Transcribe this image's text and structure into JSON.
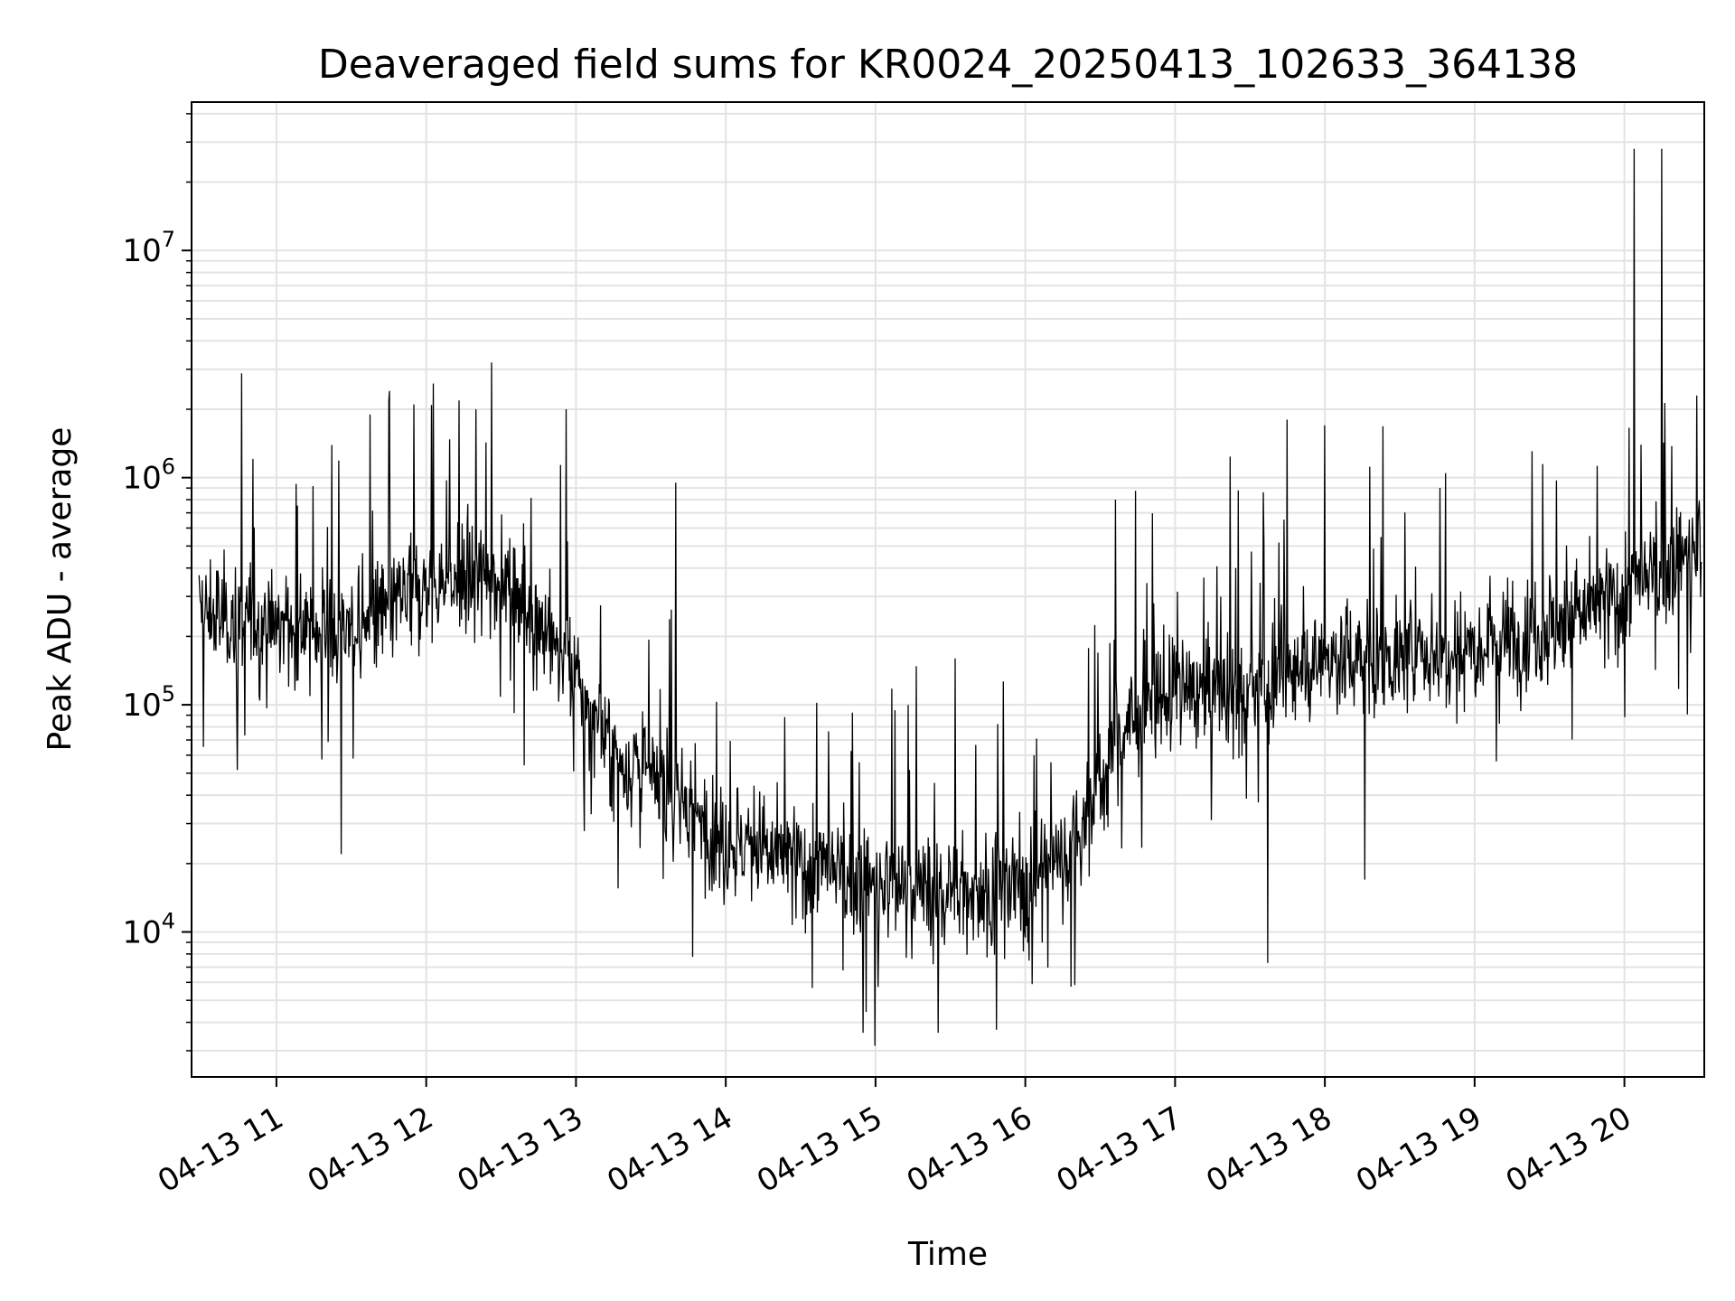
{
  "chart_data": {
    "type": "line",
    "title": "Deaveraged field sums for KR0024_20250413_102633_364138",
    "xlabel": "Time",
    "ylabel": "Peak ADU - average",
    "yscale": "log",
    "ylim": [
      2300,
      45000000
    ],
    "xlim": [
      "2025-04-13 10:26",
      "2025-04-13 20:32"
    ],
    "x_ticks": [
      {
        "value": "2025-04-13 11:00",
        "label": "04-13 11"
      },
      {
        "value": "2025-04-13 12:00",
        "label": "04-13 12"
      },
      {
        "value": "2025-04-13 13:00",
        "label": "04-13 13"
      },
      {
        "value": "2025-04-13 14:00",
        "label": "04-13 14"
      },
      {
        "value": "2025-04-13 15:00",
        "label": "04-13 15"
      },
      {
        "value": "2025-04-13 16:00",
        "label": "04-13 16"
      },
      {
        "value": "2025-04-13 17:00",
        "label": "04-13 17"
      },
      {
        "value": "2025-04-13 18:00",
        "label": "04-13 18"
      },
      {
        "value": "2025-04-13 19:00",
        "label": "04-13 19"
      },
      {
        "value": "2025-04-13 20:00",
        "label": "04-13 20"
      }
    ],
    "y_ticks": [
      {
        "value": 10000,
        "base": "10",
        "exp": "4"
      },
      {
        "value": 100000,
        "base": "10",
        "exp": "5"
      },
      {
        "value": 1000000,
        "base": "10",
        "exp": "6"
      },
      {
        "value": 10000000,
        "base": "10",
        "exp": "7"
      }
    ],
    "grid": true,
    "line_color": "#000000",
    "grid_color": "#e3e3e3",
    "series": [
      {
        "x": [
          "2025-04-13 10:30",
          "2025-04-13 11:00",
          "2025-04-13 11:30",
          "2025-04-13 12:00",
          "2025-04-13 12:30",
          "2025-04-13 12:50",
          "2025-04-13 13:15",
          "2025-04-13 13:40",
          "2025-04-13 14:00",
          "2025-04-13 14:30",
          "2025-04-13 15:00",
          "2025-04-13 15:30",
          "2025-04-13 16:00",
          "2025-04-13 16:20",
          "2025-04-13 16:40",
          "2025-04-13 17:00",
          "2025-04-13 17:30",
          "2025-04-13 18:00",
          "2025-04-13 18:30",
          "2025-04-13 19:00",
          "2025-04-13 19:30",
          "2025-04-13 20:00",
          "2025-04-13 20:30"
        ],
        "y": [
          250000,
          220000,
          210000,
          330000,
          380000,
          200000,
          60000,
          40000,
          25000,
          20000,
          16000,
          15000,
          16000,
          25000,
          80000,
          120000,
          110000,
          160000,
          160000,
          190000,
          220000,
          300000,
          500000
        ],
        "spikes": [
          {
            "x": "2025-04-13 11:45",
            "y": 2200000
          },
          {
            "x": "2025-04-13 11:55",
            "y": 2100000
          },
          {
            "x": "2025-04-13 12:20",
            "y": 2000000
          },
          {
            "x": "2025-04-13 12:56",
            "y": 2000000
          },
          {
            "x": "2025-04-13 13:40",
            "y": 950000
          },
          {
            "x": "2025-04-13 15:32",
            "y": 160000
          },
          {
            "x": "2025-04-13 16:36",
            "y": 800000
          },
          {
            "x": "2025-04-13 17:45",
            "y": 1800000
          },
          {
            "x": "2025-04-13 18:00",
            "y": 1700000
          },
          {
            "x": "2025-04-13 20:04",
            "y": 28000000
          },
          {
            "x": "2025-04-13 20:15",
            "y": 28000000
          },
          {
            "x": "2025-04-13 20:29",
            "y": 2300000
          }
        ],
        "dips": [
          {
            "x": "2025-04-13 11:26",
            "y": 22000
          },
          {
            "x": "2025-04-13 14:55",
            "y": 3600
          },
          {
            "x": "2025-04-13 15:25",
            "y": 3600
          },
          {
            "x": "2025-04-13 17:37",
            "y": 7300
          },
          {
            "x": "2025-04-13 18:16",
            "y": 17000
          }
        ]
      }
    ]
  }
}
